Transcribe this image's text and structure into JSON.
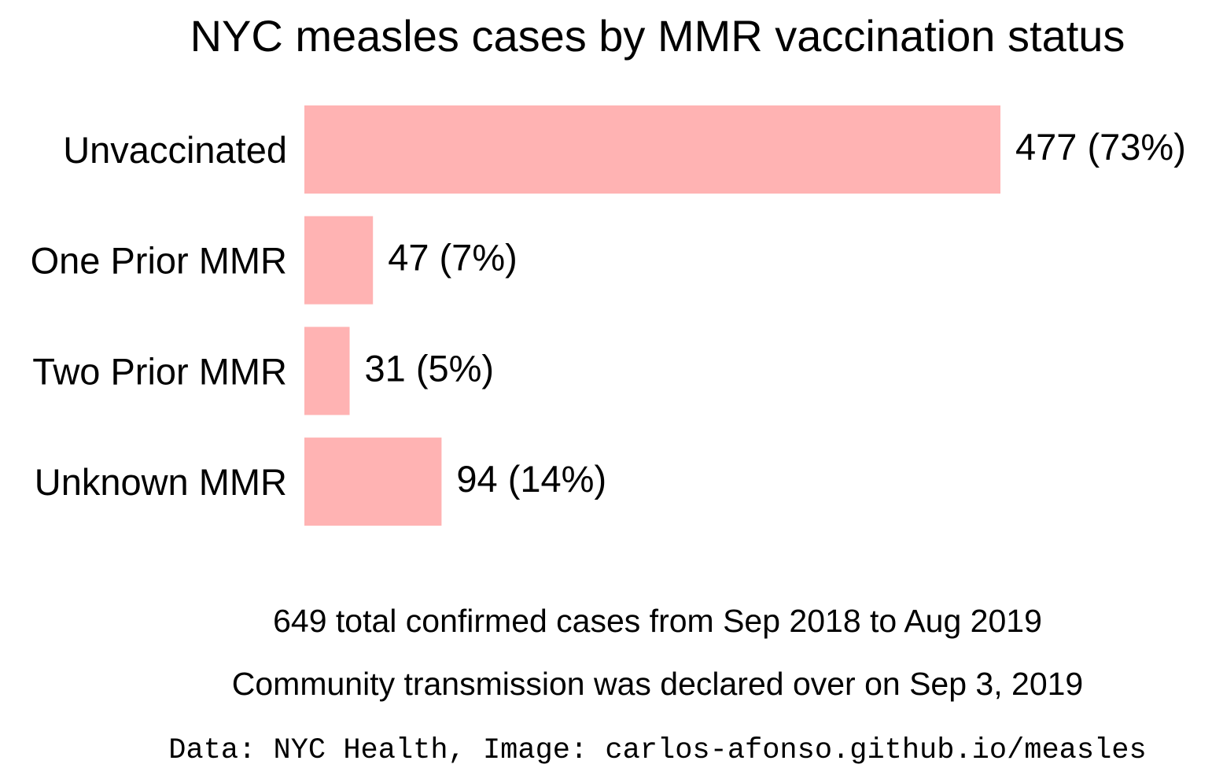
{
  "chart_data": {
    "type": "bar",
    "orientation": "horizontal",
    "title": "NYC measles cases by MMR vaccination status",
    "categories": [
      "Unvaccinated",
      "One Prior MMR",
      "Two Prior MMR",
      "Unknown MMR"
    ],
    "values": [
      477,
      47,
      31,
      94
    ],
    "percentages": [
      73,
      7,
      5,
      14
    ],
    "data_labels": [
      "477 (73%)",
      "47 (7%)",
      "31 (5%)",
      "94 (14%)"
    ],
    "bar_color": "#ffb3b3",
    "xlabel": "",
    "ylabel": "",
    "grid": false,
    "axes_visible": false
  },
  "notes": {
    "total": "649 total confirmed cases from Sep 2018 to Aug 2019",
    "transmission": "Community transmission was declared over on Sep 3, 2019",
    "credit": "Data: NYC Health, Image: carlos-afonso.github.io/measles"
  }
}
